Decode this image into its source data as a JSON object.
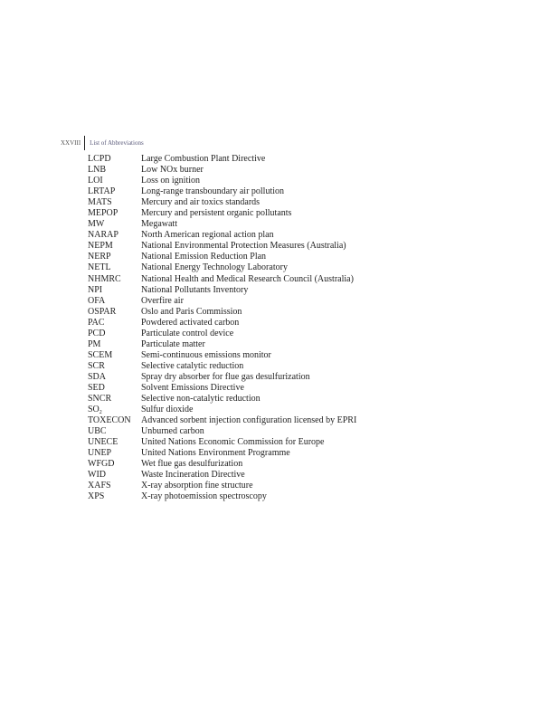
{
  "header": {
    "page_number": "XXVIII",
    "section_title": "List of Abbreviations"
  },
  "abbreviations": [
    {
      "abbr": "LCPD",
      "definition": "Large Combustion Plant Directive"
    },
    {
      "abbr": "LNB",
      "definition": "Low NOx burner"
    },
    {
      "abbr": "LOI",
      "definition": "Loss on ignition"
    },
    {
      "abbr": "LRTAP",
      "definition": "Long-range transboundary air pollution"
    },
    {
      "abbr": "MATS",
      "definition": "Mercury and air toxics standards"
    },
    {
      "abbr": "MEPOP",
      "definition": "Mercury and persistent organic pollutants"
    },
    {
      "abbr": "MW",
      "definition": "Megawatt"
    },
    {
      "abbr": "NARAP",
      "definition": "North American regional action plan"
    },
    {
      "abbr": "NEPM",
      "definition": "National Environmental Protection Measures (Australia)"
    },
    {
      "abbr": "NERP",
      "definition": "National Emission Reduction Plan"
    },
    {
      "abbr": "NETL",
      "definition": "National Energy Technology Laboratory"
    },
    {
      "abbr": "NHMRC",
      "definition": "National Health and Medical Research Council (Australia)"
    },
    {
      "abbr": "NPI",
      "definition": "National Pollutants Inventory"
    },
    {
      "abbr": "OFA",
      "definition": "Overfire air"
    },
    {
      "abbr": "OSPAR",
      "definition": "Oslo and Paris Commission"
    },
    {
      "abbr": "PAC",
      "definition": "Powdered activated carbon"
    },
    {
      "abbr": "PCD",
      "definition": "Particulate control device"
    },
    {
      "abbr": "PM",
      "definition": "Particulate matter"
    },
    {
      "abbr": "SCEM",
      "definition": "Semi-continuous emissions monitor"
    },
    {
      "abbr": "SCR",
      "definition": "Selective catalytic reduction"
    },
    {
      "abbr": "SDA",
      "definition": "Spray dry absorber for flue gas desulfurization"
    },
    {
      "abbr": "SED",
      "definition": "Solvent Emissions Directive"
    },
    {
      "abbr": "SNCR",
      "definition": "Selective non-catalytic reduction"
    },
    {
      "abbr": "SO",
      "abbr_sub": "2",
      "definition": "Sulfur dioxide"
    },
    {
      "abbr": "TOXECON",
      "definition": "Advanced sorbent injection configuration licensed by EPRI"
    },
    {
      "abbr": "UBC",
      "definition": "Unburned carbon"
    },
    {
      "abbr": "UNECE",
      "definition": "United Nations Economic Commission for Europe"
    },
    {
      "abbr": "UNEP",
      "definition": "United Nations Environment Programme"
    },
    {
      "abbr": "WFGD",
      "definition": "Wet flue gas desulfurization"
    },
    {
      "abbr": "WID",
      "definition": "Waste Incineration Directive"
    },
    {
      "abbr": "XAFS",
      "definition": "X-ray absorption fine structure"
    },
    {
      "abbr": "XPS",
      "definition": "X-ray photoemission spectroscopy"
    }
  ]
}
